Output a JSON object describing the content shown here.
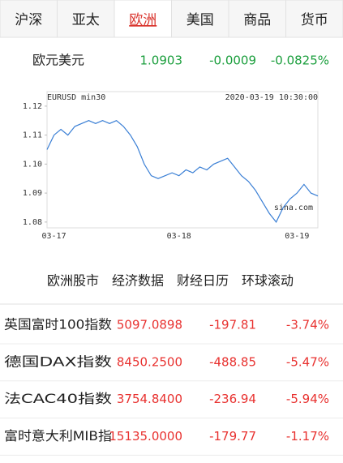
{
  "tabs": [
    "沪深",
    "亚太",
    "欧洲",
    "美国",
    "商品",
    "货币"
  ],
  "quote": {
    "name": "欧元美元",
    "price": "1.0903",
    "change": "-0.0009",
    "percent": "-0.0825%"
  },
  "chart_data": {
    "type": "line",
    "title": "EURUSD min30",
    "subtitle": "2020-03-19 10:30:00",
    "watermark": "sina.com",
    "categories": [
      null,
      "03-17",
      null,
      null,
      null,
      null,
      null,
      null,
      null,
      null,
      null,
      null,
      null,
      null,
      null,
      null,
      null,
      null,
      null,
      "03-18",
      null,
      null,
      null,
      null,
      null,
      null,
      null,
      null,
      null,
      null,
      null,
      null,
      null,
      null,
      null,
      null,
      "03-19",
      null,
      null,
      null
    ],
    "values": [
      1.105,
      1.11,
      1.112,
      1.11,
      1.113,
      1.114,
      1.115,
      1.114,
      1.115,
      1.114,
      1.115,
      1.113,
      1.11,
      1.106,
      1.1,
      1.096,
      1.095,
      1.096,
      1.097,
      1.096,
      1.098,
      1.097,
      1.099,
      1.098,
      1.1,
      1.101,
      1.102,
      1.099,
      1.096,
      1.094,
      1.091,
      1.087,
      1.083,
      1.08,
      1.085,
      1.088,
      1.09,
      1.093,
      1.09,
      1.089
    ],
    "color": "#3a7fd5",
    "ylim": [
      1.078,
      1.125
    ],
    "yticks": [
      {
        "value": 1.12,
        "label": "1.12"
      },
      {
        "value": 1.11,
        "label": "1.11"
      },
      {
        "value": 1.1,
        "label": "1.10"
      },
      {
        "value": 1.09,
        "label": "1.09"
      },
      {
        "value": 1.08,
        "label": "1.08"
      }
    ]
  },
  "subtabs": [
    "欧洲股市",
    "经济数据",
    "财经日历",
    "环球滚动"
  ],
  "table": {
    "rows": [
      [
        "英国富时100指数",
        "5097.0898",
        "-197.81",
        "-3.74%"
      ],
      [
        "德国DAX指数",
        "8450.2500",
        "-488.85",
        "-5.47%"
      ],
      [
        "法CAC40指数",
        "3754.8400",
        "-236.94",
        "-5.94%"
      ],
      [
        "富时意大利MIB指",
        "15135.0000",
        "-179.77",
        "-1.17%"
      ]
    ]
  }
}
